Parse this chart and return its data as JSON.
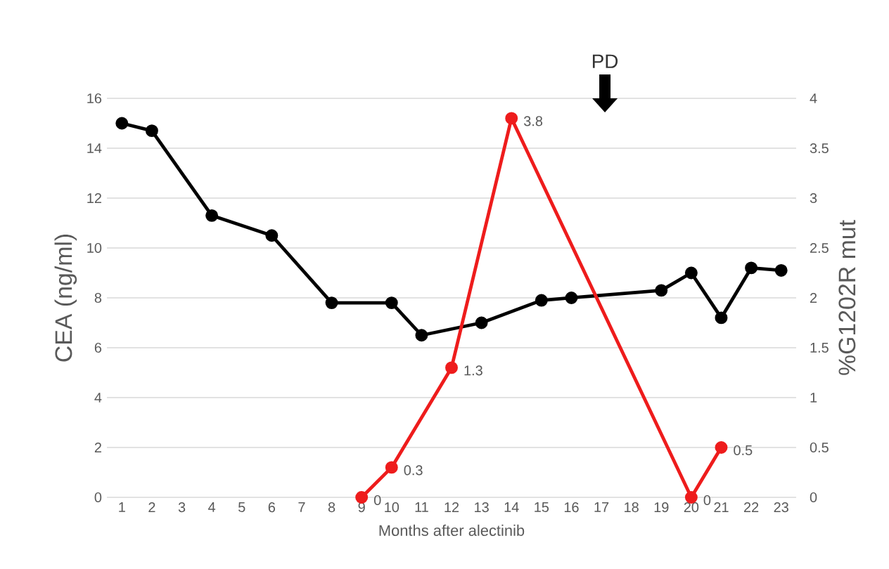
{
  "chart_data": {
    "type": "line",
    "xlabel": "Months after alectinib",
    "ylabel": "CEA (ng/ml)",
    "y2label": "%G1202R mut",
    "xlim": [
      0.5,
      23.5
    ],
    "xticks": [
      1,
      2,
      3,
      4,
      5,
      6,
      7,
      8,
      9,
      10,
      11,
      12,
      13,
      14,
      15,
      16,
      17,
      18,
      19,
      20,
      21,
      22,
      23
    ],
    "ylim": [
      0,
      16
    ],
    "yticks": [
      0,
      2,
      4,
      6,
      8,
      10,
      12,
      14,
      16
    ],
    "y2lim": [
      0,
      4
    ],
    "y2ticks": [
      0,
      0.5,
      1,
      1.5,
      2,
      2.5,
      3,
      3.5,
      4
    ],
    "grid": "y",
    "marker": "circle",
    "line_style": "solid",
    "annotations": [
      "PD"
    ],
    "series": [
      {
        "color": "#000000",
        "x": [
          1,
          2,
          4,
          6,
          8,
          10,
          11,
          13,
          15,
          16,
          19,
          20,
          21,
          22,
          23
        ],
        "values": [
          15,
          14.7,
          11.3,
          10.5,
          7.8,
          7.8,
          6.5,
          7.0,
          7.9,
          8.0,
          8.3,
          9.0,
          7.2,
          9.2,
          9.1
        ]
      },
      {
        "color": "#ee1c1c",
        "axis": "y2",
        "x": [
          9,
          10,
          12,
          14,
          20,
          21
        ],
        "values": [
          0,
          0.3,
          1.3,
          3.8,
          0,
          0.5
        ],
        "value_labels": [
          "0",
          "0.3",
          "1.3",
          "3.8",
          "0",
          "0.5"
        ]
      }
    ]
  }
}
